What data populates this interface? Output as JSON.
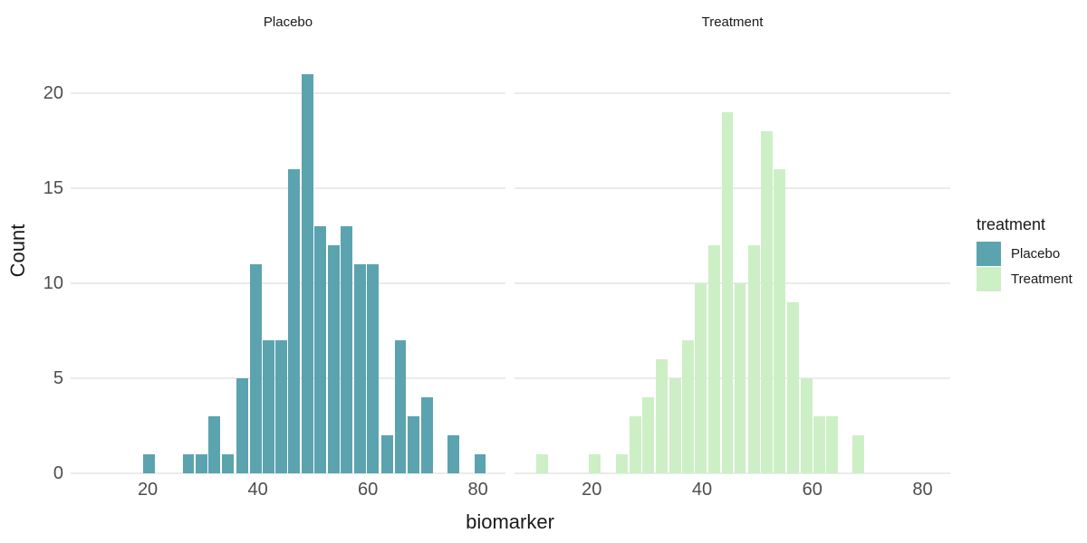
{
  "chart_data": {
    "type": "bar",
    "subtype": "faceted-histogram",
    "xlabel": "biomarker",
    "ylabel": "Count",
    "x_ticks": [
      20,
      40,
      60,
      80
    ],
    "y_ticks": [
      0,
      5,
      10,
      15,
      20
    ],
    "xlim": [
      6,
      85
    ],
    "ylim": [
      0,
      22.8
    ],
    "binwidth": 2.35,
    "grid": "horizontal major gridlines only, light gray on white, no axis lines (minimal theme)",
    "legend_position": "right",
    "facets": [
      {
        "label": "Placebo",
        "color": "#5CA3B0",
        "bars": [
          [
            20.2,
            1
          ],
          [
            27.4,
            1
          ],
          [
            29.8,
            1
          ],
          [
            32.1,
            3
          ],
          [
            34.5,
            1
          ],
          [
            37.2,
            5
          ],
          [
            39.6,
            11
          ],
          [
            41.9,
            7
          ],
          [
            44.2,
            7
          ],
          [
            46.6,
            16
          ],
          [
            49.0,
            21
          ],
          [
            51.4,
            13
          ],
          [
            53.8,
            12
          ],
          [
            56.1,
            13
          ],
          [
            58.6,
            11
          ],
          [
            60.9,
            11
          ],
          [
            63.5,
            2
          ],
          [
            65.9,
            7
          ],
          [
            68.3,
            3
          ],
          [
            70.7,
            4
          ],
          [
            75.6,
            2
          ],
          [
            80.4,
            1
          ]
        ]
      },
      {
        "label": "Treatment",
        "color": "#CDEFC6",
        "bars": [
          [
            11.0,
            1
          ],
          [
            20.5,
            1
          ],
          [
            25.4,
            1
          ],
          [
            27.9,
            3
          ],
          [
            30.3,
            4
          ],
          [
            32.7,
            6
          ],
          [
            35.1,
            5
          ],
          [
            37.4,
            7
          ],
          [
            39.7,
            10
          ],
          [
            42.2,
            12
          ],
          [
            44.6,
            19
          ],
          [
            46.9,
            10
          ],
          [
            49.4,
            12
          ],
          [
            51.8,
            18
          ],
          [
            54.1,
            16
          ],
          [
            56.5,
            9
          ],
          [
            58.9,
            5
          ],
          [
            61.2,
            3
          ],
          [
            63.6,
            3
          ],
          [
            68.3,
            2
          ]
        ]
      }
    ],
    "legend": {
      "title": "treatment",
      "entries": [
        {
          "label": "Placebo",
          "color": "#5CA3B0"
        },
        {
          "label": "Treatment",
          "color": "#CDEFC6"
        }
      ]
    }
  },
  "colors": {
    "background": "#FFFFFF",
    "grid": "#EBEBEB",
    "tick_text": "#4D4D4D",
    "title_text": "#1A1A1A",
    "placebo": "#5CA3B0",
    "treatment": "#CDEFC6"
  }
}
